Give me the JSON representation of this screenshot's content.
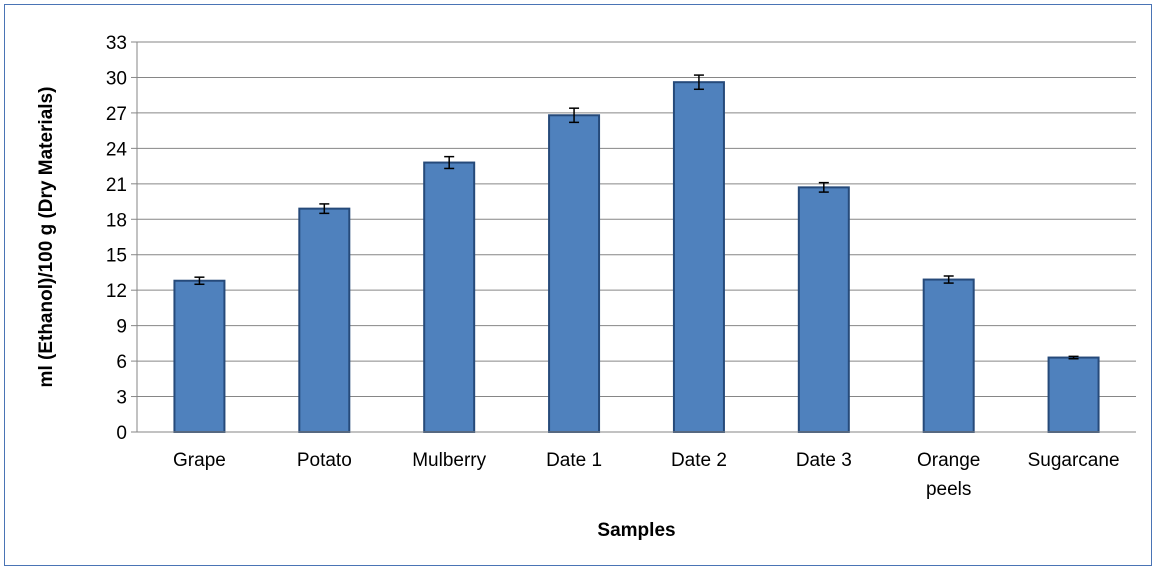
{
  "chart_data": {
    "type": "bar",
    "title": "",
    "xlabel": "Samples",
    "ylabel": "ml (Ethanol)/100 g (Dry Materials)",
    "categories": [
      [
        "Grape"
      ],
      [
        "Potato"
      ],
      [
        "Mulberry"
      ],
      [
        "Date 1"
      ],
      [
        "Date 2"
      ],
      [
        "Date 3"
      ],
      [
        "Orange",
        "peels"
      ],
      [
        "Sugarcane"
      ]
    ],
    "values": [
      12.8,
      18.9,
      22.8,
      26.8,
      29.6,
      20.7,
      12.9,
      6.3
    ],
    "errors": [
      0.3,
      0.4,
      0.5,
      0.6,
      0.6,
      0.4,
      0.3,
      0.1
    ],
    "ylim": [
      0,
      33
    ],
    "yticks": [
      0,
      3,
      6,
      9,
      12,
      15,
      18,
      21,
      24,
      27,
      30,
      33
    ],
    "grid": true,
    "legend": "none",
    "colors": {
      "bar_fill": "#4f81bd",
      "bar_stroke": "#264a7a",
      "grid": "#868686",
      "axis": "#868686",
      "frame": "#4a74b5"
    }
  }
}
